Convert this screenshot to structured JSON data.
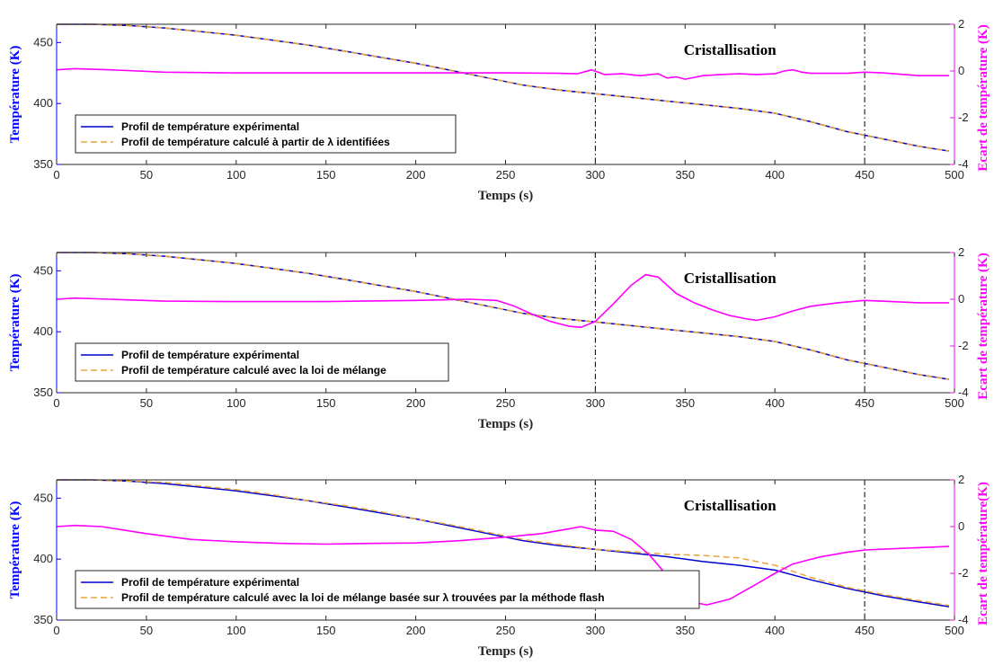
{
  "colors": {
    "experimental": "#0000cc",
    "calculated": "#e8a33c",
    "ecart": "#ff00ff",
    "left_axis": "#0000ff",
    "right_axis": "#ff00ff"
  },
  "chart_data": [
    {
      "type": "line",
      "xlabel": "Temps (s)",
      "ylabel_left": "Température (K)",
      "ylabel_right": "Ecart de température (K)",
      "xlim": [
        0,
        500
      ],
      "ylim_left": [
        350,
        465
      ],
      "ylim_right": [
        -4,
        2
      ],
      "xticks": [
        0,
        50,
        100,
        150,
        200,
        250,
        300,
        350,
        400,
        450,
        500
      ],
      "yticks_left": [
        350,
        400,
        450
      ],
      "yticks_right": [
        -4,
        -2,
        0,
        2
      ],
      "vlines": [
        300,
        450
      ],
      "annotation": {
        "text": "Cristallisation",
        "x": 375
      },
      "legend_position": "bottom-left",
      "series": [
        {
          "name": "Profil de température expérimental",
          "axis": "left",
          "style": "solid",
          "x": [
            0,
            20,
            40,
            60,
            80,
            100,
            120,
            140,
            160,
            180,
            200,
            220,
            240,
            260,
            280,
            300,
            320,
            340,
            360,
            380,
            400,
            420,
            440,
            460,
            480,
            497
          ],
          "y": [
            465,
            465,
            464,
            462,
            459,
            456,
            452,
            448,
            443,
            438,
            433,
            427,
            421,
            415,
            411,
            408,
            405,
            402,
            399,
            396,
            392,
            385,
            377,
            371,
            365,
            361
          ]
        },
        {
          "name": "Profil de température calculé à partir de λ identifiées",
          "axis": "left",
          "style": "dashed",
          "x": [
            0,
            20,
            40,
            60,
            80,
            100,
            120,
            140,
            160,
            180,
            200,
            220,
            240,
            260,
            280,
            300,
            320,
            340,
            360,
            380,
            400,
            420,
            440,
            460,
            480,
            497
          ],
          "y": [
            465,
            465,
            464,
            462,
            459,
            456,
            452,
            448,
            443,
            438,
            433,
            427,
            421,
            415,
            411,
            408,
            405,
            402,
            399,
            396,
            392,
            385,
            377,
            371,
            365,
            361
          ]
        },
        {
          "name": "Ecart de température",
          "axis": "right",
          "style": "solid",
          "x": [
            0,
            10,
            30,
            60,
            100,
            150,
            200,
            250,
            280,
            290,
            298,
            305,
            315,
            325,
            335,
            340,
            345,
            350,
            360,
            370,
            380,
            390,
            400,
            405,
            410,
            415,
            420,
            440,
            450,
            460,
            480,
            497
          ],
          "y": [
            0.05,
            0.1,
            0.05,
            -0.05,
            -0.08,
            -0.08,
            -0.08,
            -0.08,
            -0.1,
            -0.12,
            0.05,
            -0.15,
            -0.12,
            -0.2,
            -0.12,
            -0.3,
            -0.25,
            -0.35,
            -0.2,
            -0.15,
            -0.12,
            -0.15,
            -0.12,
            0.0,
            0.05,
            -0.05,
            -0.1,
            -0.1,
            -0.05,
            -0.08,
            -0.2,
            -0.2
          ]
        }
      ]
    },
    {
      "type": "line",
      "xlabel": "Temps (s)",
      "ylabel_left": "Température (K)",
      "ylabel_right": "Ecart de température (K)",
      "xlim": [
        0,
        500
      ],
      "ylim_left": [
        350,
        465
      ],
      "ylim_right": [
        -4,
        2
      ],
      "xticks": [
        0,
        50,
        100,
        150,
        200,
        250,
        300,
        350,
        400,
        450,
        500
      ],
      "yticks_left": [
        350,
        400,
        450
      ],
      "yticks_right": [
        -4,
        -2,
        0,
        2
      ],
      "vlines": [
        300,
        450
      ],
      "annotation": {
        "text": "Cristallisation",
        "x": 375
      },
      "legend_position": "bottom-left",
      "series": [
        {
          "name": "Profil de température expérimental",
          "axis": "left",
          "style": "solid",
          "x": [
            0,
            20,
            40,
            60,
            80,
            100,
            120,
            140,
            160,
            180,
            200,
            220,
            240,
            260,
            280,
            300,
            320,
            340,
            360,
            380,
            400,
            420,
            440,
            460,
            480,
            497
          ],
          "y": [
            465,
            465,
            464,
            462,
            459,
            456,
            452,
            448,
            443,
            438,
            433,
            427,
            421,
            415,
            411,
            408,
            405,
            402,
            399,
            396,
            392,
            385,
            377,
            371,
            365,
            361
          ]
        },
        {
          "name": "Profil de température calculé avec la loi de mélange",
          "axis": "left",
          "style": "dashed",
          "x": [
            0,
            20,
            40,
            60,
            80,
            100,
            120,
            140,
            160,
            180,
            200,
            220,
            240,
            260,
            280,
            300,
            320,
            340,
            360,
            380,
            400,
            420,
            440,
            460,
            480,
            497
          ],
          "y": [
            465,
            465,
            464,
            462,
            459,
            456,
            452,
            448,
            443,
            438,
            433,
            427,
            421,
            415,
            411,
            408,
            405,
            402,
            399,
            396,
            392,
            385,
            377,
            371,
            365,
            361
          ]
        },
        {
          "name": "Ecart de température",
          "axis": "right",
          "style": "solid",
          "x": [
            0,
            10,
            30,
            60,
            100,
            150,
            200,
            230,
            245,
            255,
            265,
            275,
            285,
            292,
            300,
            310,
            320,
            328,
            335,
            345,
            355,
            365,
            375,
            385,
            390,
            400,
            410,
            420,
            435,
            450,
            465,
            480,
            497
          ],
          "y": [
            0.0,
            0.05,
            0.0,
            -0.08,
            -0.1,
            -0.1,
            -0.05,
            0.0,
            -0.05,
            -0.3,
            -0.65,
            -0.95,
            -1.15,
            -1.2,
            -0.95,
            -0.2,
            0.6,
            1.05,
            0.95,
            0.25,
            -0.15,
            -0.45,
            -0.7,
            -0.85,
            -0.9,
            -0.75,
            -0.5,
            -0.3,
            -0.15,
            -0.05,
            -0.1,
            -0.15,
            -0.15
          ]
        }
      ]
    },
    {
      "type": "line",
      "xlabel": "Temps (s)",
      "ylabel_left": "Température (K)",
      "ylabel_right": "Ecart de température(K)",
      "xlim": [
        0,
        500
      ],
      "ylim_left": [
        350,
        465
      ],
      "ylim_right": [
        -4,
        2
      ],
      "xticks": [
        0,
        50,
        100,
        150,
        200,
        250,
        300,
        350,
        400,
        450,
        500
      ],
      "yticks_left": [
        350,
        400,
        450
      ],
      "yticks_right": [
        -4,
        -2,
        0,
        2
      ],
      "vlines": [
        300,
        450
      ],
      "annotation": {
        "text": "Cristallisation",
        "x": 375
      },
      "legend_position": "bottom-left",
      "series": [
        {
          "name": "Profil de température expérimental",
          "axis": "left",
          "style": "solid",
          "x": [
            0,
            20,
            40,
            60,
            80,
            100,
            120,
            140,
            160,
            180,
            200,
            220,
            240,
            260,
            280,
            300,
            320,
            340,
            360,
            380,
            400,
            420,
            440,
            460,
            480,
            497
          ],
          "y": [
            465,
            465,
            464,
            462,
            459,
            456,
            452,
            448,
            443,
            438,
            433,
            427,
            421,
            415,
            411,
            408,
            405,
            402,
            398,
            395,
            391,
            383,
            376,
            370,
            365,
            361
          ]
        },
        {
          "name": "Profil de température calculé avec la loi de mélange basée sur λ trouvées par la méthode flash",
          "axis": "left",
          "style": "dashed",
          "x": [
            0,
            20,
            40,
            60,
            80,
            100,
            120,
            140,
            160,
            180,
            200,
            220,
            240,
            260,
            280,
            300,
            320,
            340,
            360,
            380,
            400,
            420,
            440,
            460,
            480,
            497
          ],
          "y": [
            465,
            465,
            464,
            463,
            460,
            457,
            453,
            448,
            444,
            439,
            433,
            428,
            422,
            416,
            412,
            408,
            406,
            404,
            403,
            401,
            395,
            385,
            377,
            371,
            366,
            362
          ]
        },
        {
          "name": "Ecart de température",
          "axis": "right",
          "style": "solid",
          "x": [
            0,
            10,
            25,
            50,
            75,
            100,
            125,
            150,
            175,
            200,
            225,
            250,
            270,
            285,
            292,
            300,
            310,
            320,
            330,
            340,
            345,
            352,
            362,
            375,
            390,
            400,
            410,
            425,
            440,
            450,
            465,
            480,
            497
          ],
          "y": [
            0.0,
            0.05,
            0.0,
            -0.3,
            -0.55,
            -0.65,
            -0.72,
            -0.75,
            -0.72,
            -0.7,
            -0.6,
            -0.45,
            -0.3,
            -0.1,
            0.0,
            -0.15,
            -0.2,
            -0.55,
            -1.2,
            -2.1,
            -2.8,
            -3.2,
            -3.35,
            -3.1,
            -2.45,
            -2.0,
            -1.6,
            -1.3,
            -1.1,
            -1.0,
            -0.95,
            -0.9,
            -0.85
          ]
        }
      ]
    }
  ]
}
